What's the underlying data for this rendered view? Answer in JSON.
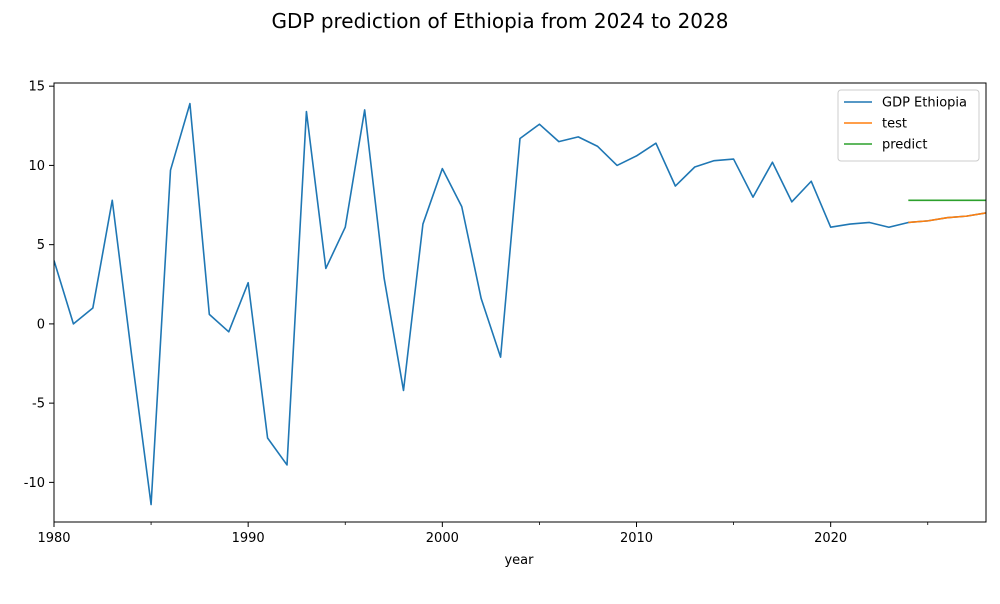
{
  "chart_data": {
    "type": "line",
    "title": "GDP prediction of Ethiopia from 2024 to 2028",
    "xlabel": "year",
    "ylabel": "",
    "xlim": [
      1980,
      2028
    ],
    "ylim": [
      -12.5,
      15.2
    ],
    "x_ticks": [
      1980,
      1990,
      2000,
      2010,
      2020
    ],
    "y_ticks": [
      -10,
      -5,
      0,
      5,
      10,
      15
    ],
    "grid": false,
    "legend_position": "top-right",
    "series": [
      {
        "name": "GDP Ethiopia",
        "color": "#1f77b4",
        "x": [
          1980,
          1981,
          1982,
          1983,
          1984,
          1985,
          1986,
          1987,
          1988,
          1989,
          1990,
          1991,
          1992,
          1993,
          1994,
          1995,
          1996,
          1997,
          1998,
          1999,
          2000,
          2001,
          2002,
          2003,
          2004,
          2005,
          2006,
          2007,
          2008,
          2009,
          2010,
          2011,
          2012,
          2013,
          2014,
          2015,
          2016,
          2017,
          2018,
          2019,
          2020,
          2021,
          2022,
          2023,
          2024,
          2025,
          2026,
          2027,
          2028
        ],
        "values": [
          4.0,
          0.0,
          1.0,
          7.8,
          -2.0,
          -11.4,
          9.7,
          13.9,
          0.6,
          -0.5,
          2.6,
          -7.2,
          -8.9,
          13.4,
          3.5,
          6.1,
          13.5,
          2.9,
          -4.2,
          6.3,
          9.8,
          7.4,
          1.6,
          -2.1,
          11.7,
          12.6,
          11.5,
          11.8,
          11.2,
          10.0,
          10.6,
          11.4,
          8.7,
          9.9,
          10.3,
          10.4,
          8.0,
          10.2,
          7.7,
          9.0,
          6.1,
          6.3,
          6.4,
          6.1,
          6.4,
          6.5,
          6.7,
          6.8,
          7.0
        ]
      },
      {
        "name": "test",
        "color": "#ff7f0e",
        "x": [
          2024,
          2025,
          2026,
          2027,
          2028
        ],
        "values": [
          6.4,
          6.5,
          6.7,
          6.8,
          7.0
        ]
      },
      {
        "name": "predict",
        "color": "#2ca02c",
        "x": [
          2024,
          2025,
          2026,
          2027,
          2028
        ],
        "values": [
          7.8,
          7.8,
          7.8,
          7.8,
          7.8
        ]
      }
    ]
  }
}
